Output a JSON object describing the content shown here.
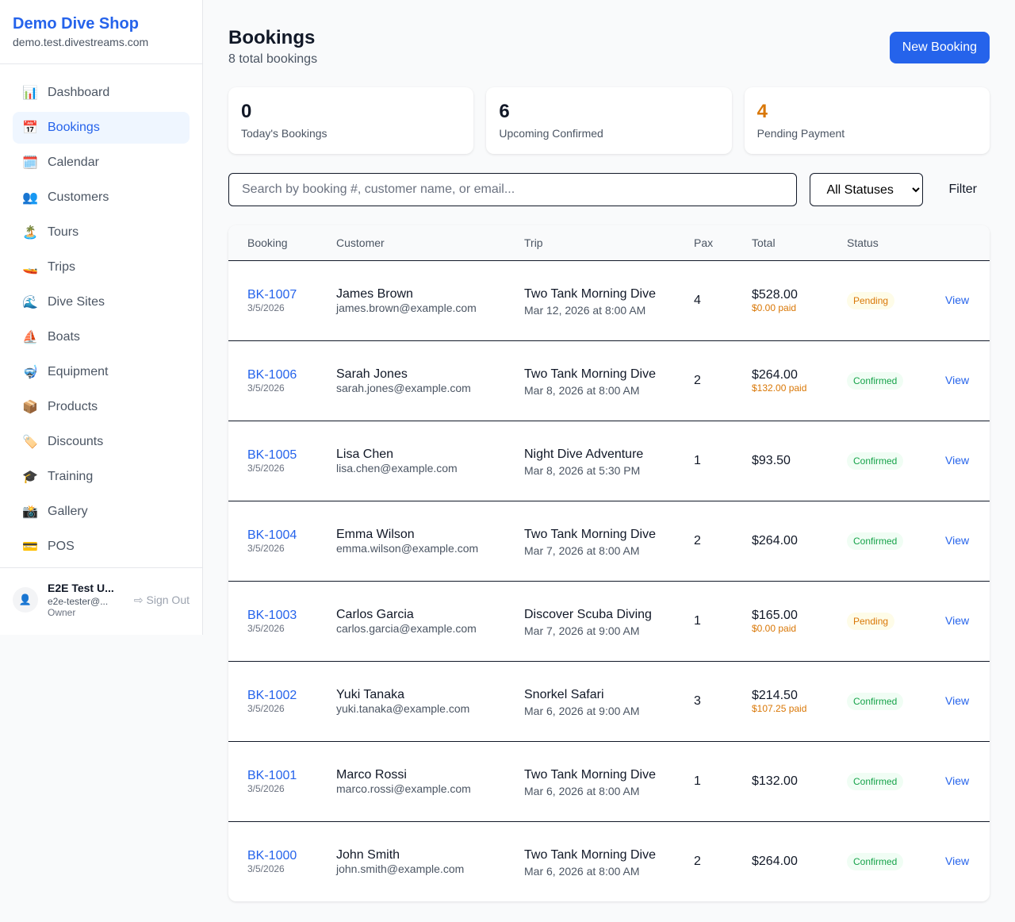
{
  "shop": {
    "name": "Demo Dive Shop",
    "domain": "demo.test.divestreams.com"
  },
  "nav": [
    {
      "label": "Dashboard",
      "icon": "📊"
    },
    {
      "label": "Bookings",
      "icon": "📅",
      "active": true
    },
    {
      "label": "Calendar",
      "icon": "🗓️"
    },
    {
      "label": "Customers",
      "icon": "👥"
    },
    {
      "label": "Tours",
      "icon": "🏝️"
    },
    {
      "label": "Trips",
      "icon": "🚤"
    },
    {
      "label": "Dive Sites",
      "icon": "🌊"
    },
    {
      "label": "Boats",
      "icon": "⛵"
    },
    {
      "label": "Equipment",
      "icon": "🤿"
    },
    {
      "label": "Products",
      "icon": "📦"
    },
    {
      "label": "Discounts",
      "icon": "🏷️"
    },
    {
      "label": "Training",
      "icon": "🎓"
    },
    {
      "label": "Gallery",
      "icon": "📸"
    },
    {
      "label": "POS",
      "icon": "💳"
    }
  ],
  "user": {
    "name": "E2E Test U...",
    "email": "e2e-tester@...",
    "role": "Owner",
    "signout": "Sign Out"
  },
  "page": {
    "title": "Bookings",
    "subtitle": "8 total bookings",
    "new_button": "New Booking"
  },
  "stats": [
    {
      "value": "0",
      "label": "Today's Bookings",
      "color": "#111827"
    },
    {
      "value": "6",
      "label": "Upcoming Confirmed",
      "color": "#111827"
    },
    {
      "value": "4",
      "label": "Pending Payment",
      "color": "#d97706"
    }
  ],
  "filters": {
    "search_placeholder": "Search by booking #, customer name, or email...",
    "status_selected": "All Statuses",
    "filter_label": "Filter"
  },
  "table": {
    "headers": [
      "Booking",
      "Customer",
      "Trip",
      "Pax",
      "Total",
      "Status",
      ""
    ],
    "rows": [
      {
        "id": "BK-1007",
        "date": "3/5/2026",
        "name": "James Brown",
        "email": "james.brown@example.com",
        "trip": "Two Tank Morning Dive",
        "when": "Mar 12, 2026 at 8:00 AM",
        "pax": "4",
        "total": "$528.00",
        "paid": "$0.00 paid",
        "status": "Pending"
      },
      {
        "id": "BK-1006",
        "date": "3/5/2026",
        "name": "Sarah Jones",
        "email": "sarah.jones@example.com",
        "trip": "Two Tank Morning Dive",
        "when": "Mar 8, 2026 at 8:00 AM",
        "pax": "2",
        "total": "$264.00",
        "paid": "$132.00 paid",
        "status": "Confirmed"
      },
      {
        "id": "BK-1005",
        "date": "3/5/2026",
        "name": "Lisa Chen",
        "email": "lisa.chen@example.com",
        "trip": "Night Dive Adventure",
        "when": "Mar 8, 2026 at 5:30 PM",
        "pax": "1",
        "total": "$93.50",
        "paid": "",
        "status": "Confirmed"
      },
      {
        "id": "BK-1004",
        "date": "3/5/2026",
        "name": "Emma Wilson",
        "email": "emma.wilson@example.com",
        "trip": "Two Tank Morning Dive",
        "when": "Mar 7, 2026 at 8:00 AM",
        "pax": "2",
        "total": "$264.00",
        "paid": "",
        "status": "Confirmed"
      },
      {
        "id": "BK-1003",
        "date": "3/5/2026",
        "name": "Carlos Garcia",
        "email": "carlos.garcia@example.com",
        "trip": "Discover Scuba Diving",
        "when": "Mar 7, 2026 at 9:00 AM",
        "pax": "1",
        "total": "$165.00",
        "paid": "$0.00 paid",
        "status": "Pending"
      },
      {
        "id": "BK-1002",
        "date": "3/5/2026",
        "name": "Yuki Tanaka",
        "email": "yuki.tanaka@example.com",
        "trip": "Snorkel Safari",
        "when": "Mar 6, 2026 at 9:00 AM",
        "pax": "3",
        "total": "$214.50",
        "paid": "$107.25 paid",
        "status": "Confirmed"
      },
      {
        "id": "BK-1001",
        "date": "3/5/2026",
        "name": "Marco Rossi",
        "email": "marco.rossi@example.com",
        "trip": "Two Tank Morning Dive",
        "when": "Mar 6, 2026 at 8:00 AM",
        "pax": "1",
        "total": "$132.00",
        "paid": "",
        "status": "Confirmed"
      },
      {
        "id": "BK-1000",
        "date": "3/5/2026",
        "name": "John Smith",
        "email": "john.smith@example.com",
        "trip": "Two Tank Morning Dive",
        "when": "Mar 6, 2026 at 8:00 AM",
        "pax": "2",
        "total": "$264.00",
        "paid": "",
        "status": "Confirmed"
      }
    ],
    "view_label": "View"
  }
}
